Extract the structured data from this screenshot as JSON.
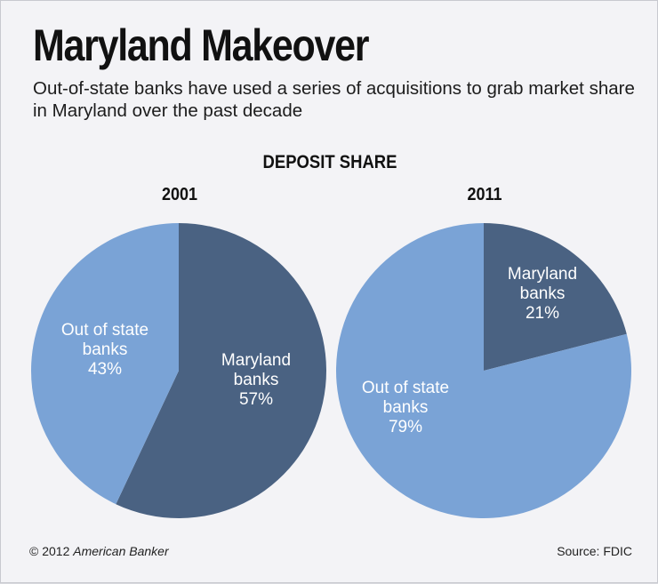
{
  "header": {
    "title": "Maryland Makeover",
    "subtitle": "Out-of-state banks have used a series of acquisitions to grab market share in Maryland over the past decade"
  },
  "chart_data": {
    "type": "pie",
    "title": "DEPOSIT SHARE",
    "colors": {
      "maryland": "#4a6282",
      "out_of_state": "#7aa3d6",
      "label": "#ffffff"
    },
    "charts": [
      {
        "year": "2001",
        "slices": [
          {
            "key": "maryland",
            "label_lines": [
              "Maryland",
              "banks"
            ],
            "value_label": "57%",
            "value": 57
          },
          {
            "key": "out_of_state",
            "label_lines": [
              "Out of state",
              "banks"
            ],
            "value_label": "43%",
            "value": 43
          }
        ]
      },
      {
        "year": "2011",
        "slices": [
          {
            "key": "maryland",
            "label_lines": [
              "Maryland",
              "banks"
            ],
            "value_label": "21%",
            "value": 21
          },
          {
            "key": "out_of_state",
            "label_lines": [
              "Out of state",
              "banks"
            ],
            "value_label": "79%",
            "value": 79
          }
        ]
      }
    ]
  },
  "footer": {
    "copyright_prefix": "© 2012",
    "copyright_name": "American Banker",
    "source": "Source: FDIC"
  }
}
